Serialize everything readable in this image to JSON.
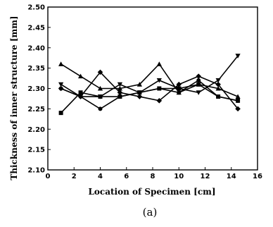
{
  "chart_data": {
    "type": "line",
    "xlabel": "Location of Specimen [cm]",
    "ylabel": "Thickness of inner structure [mm]",
    "caption": "(a)",
    "xlim": [
      0,
      16
    ],
    "ylim": [
      2.1,
      2.5
    ],
    "x_ticks": [
      "0",
      "2",
      "4",
      "6",
      "8",
      "10",
      "12",
      "14",
      "16"
    ],
    "y_ticks": [
      "2.10",
      "2.15",
      "2.20",
      "2.25",
      "2.30",
      "2.35",
      "2.40",
      "2.45",
      "2.50"
    ],
    "grid": false,
    "x": [
      1,
      2.5,
      4,
      5.5,
      7,
      8.5,
      10,
      11.5,
      13,
      14.5
    ],
    "series": [
      {
        "marker": "square",
        "color": "#000000",
        "values": [
          2.24,
          2.29,
          2.28,
          2.28,
          2.29,
          2.3,
          2.3,
          2.31,
          2.28,
          2.27
        ]
      },
      {
        "marker": "triangle-up",
        "color": "#000000",
        "values": [
          2.36,
          2.33,
          2.3,
          2.3,
          2.31,
          2.36,
          2.29,
          2.31,
          2.3,
          2.28
        ]
      },
      {
        "marker": "triangle-down",
        "color": "#000000",
        "values": [
          2.31,
          2.28,
          2.28,
          2.31,
          2.29,
          2.32,
          2.3,
          2.29,
          2.32,
          2.38
        ]
      },
      {
        "marker": "diamond",
        "color": "#000000",
        "values": [
          2.3,
          2.28,
          2.34,
          2.29,
          2.28,
          2.27,
          2.31,
          2.33,
          2.31,
          2.25
        ]
      },
      {
        "marker": "circle",
        "color": "#000000",
        "values": [
          2.3,
          2.28,
          2.25,
          2.28,
          2.29,
          2.3,
          2.29,
          2.32,
          2.28,
          2.27
        ]
      }
    ]
  }
}
